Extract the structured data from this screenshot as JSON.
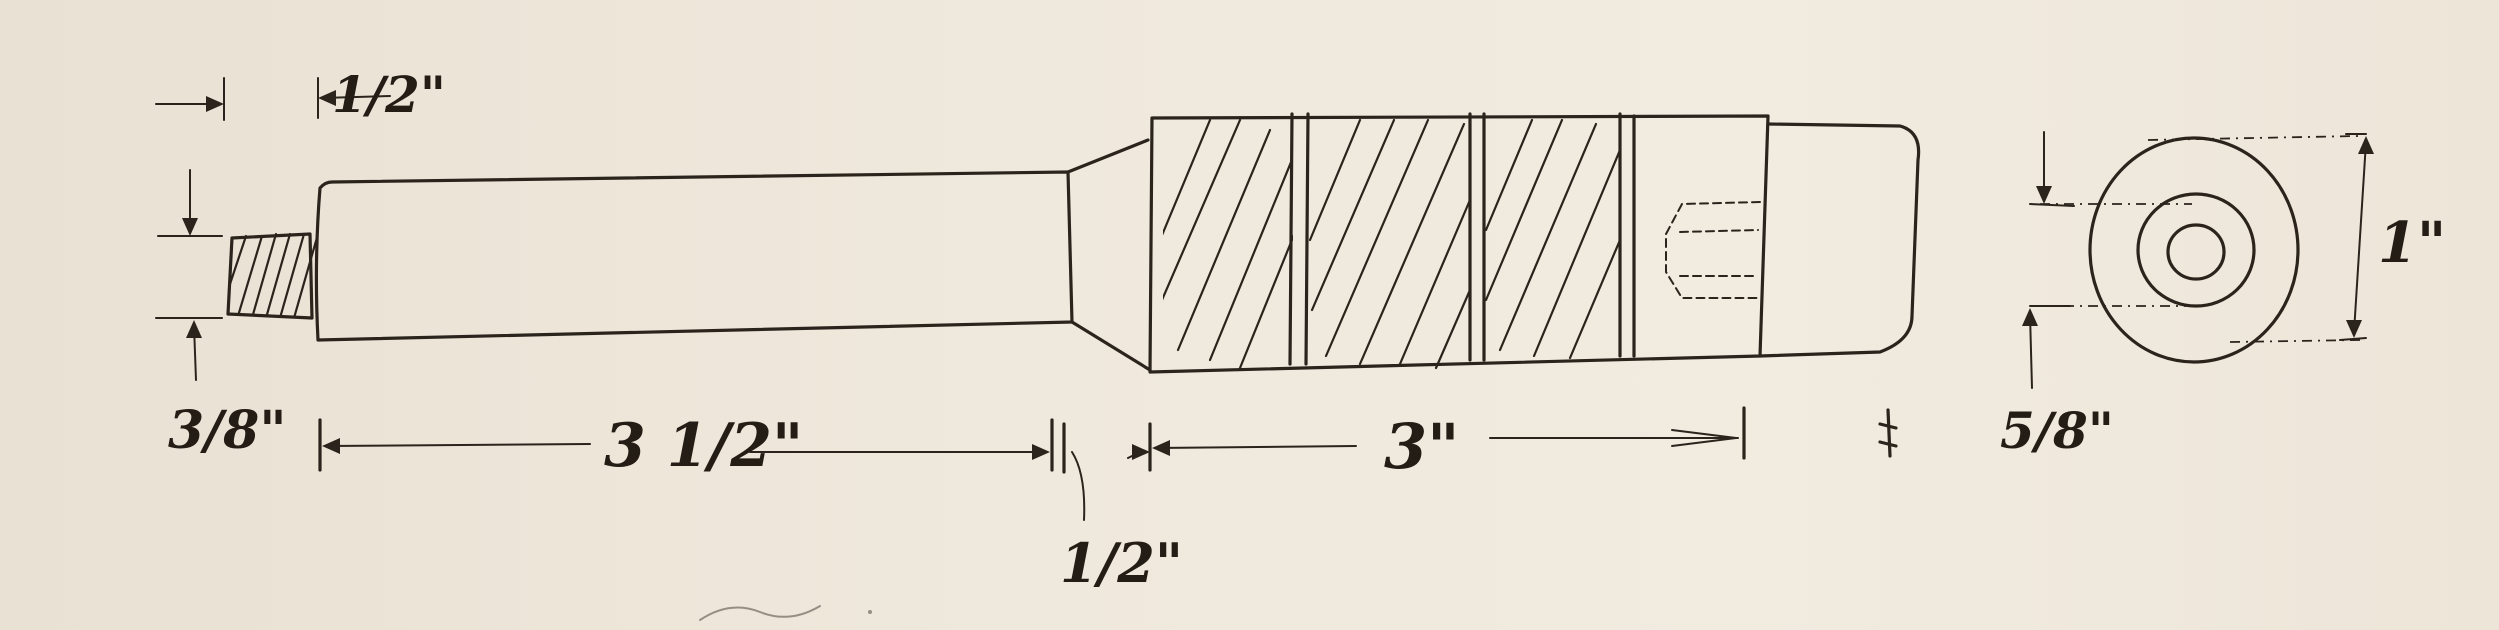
{
  "dimensions": {
    "thread_length": "1/2\"",
    "thread_diameter": "3/8\"",
    "shaft_length": "3 1/2\"",
    "taper_length": "1/2\"",
    "handle_length": "3\"",
    "end_inner_diameter": "5/8\"",
    "end_outer_diameter": "1\""
  },
  "colors": {
    "ink": "#2a241d",
    "paper": "#efe8dc"
  }
}
